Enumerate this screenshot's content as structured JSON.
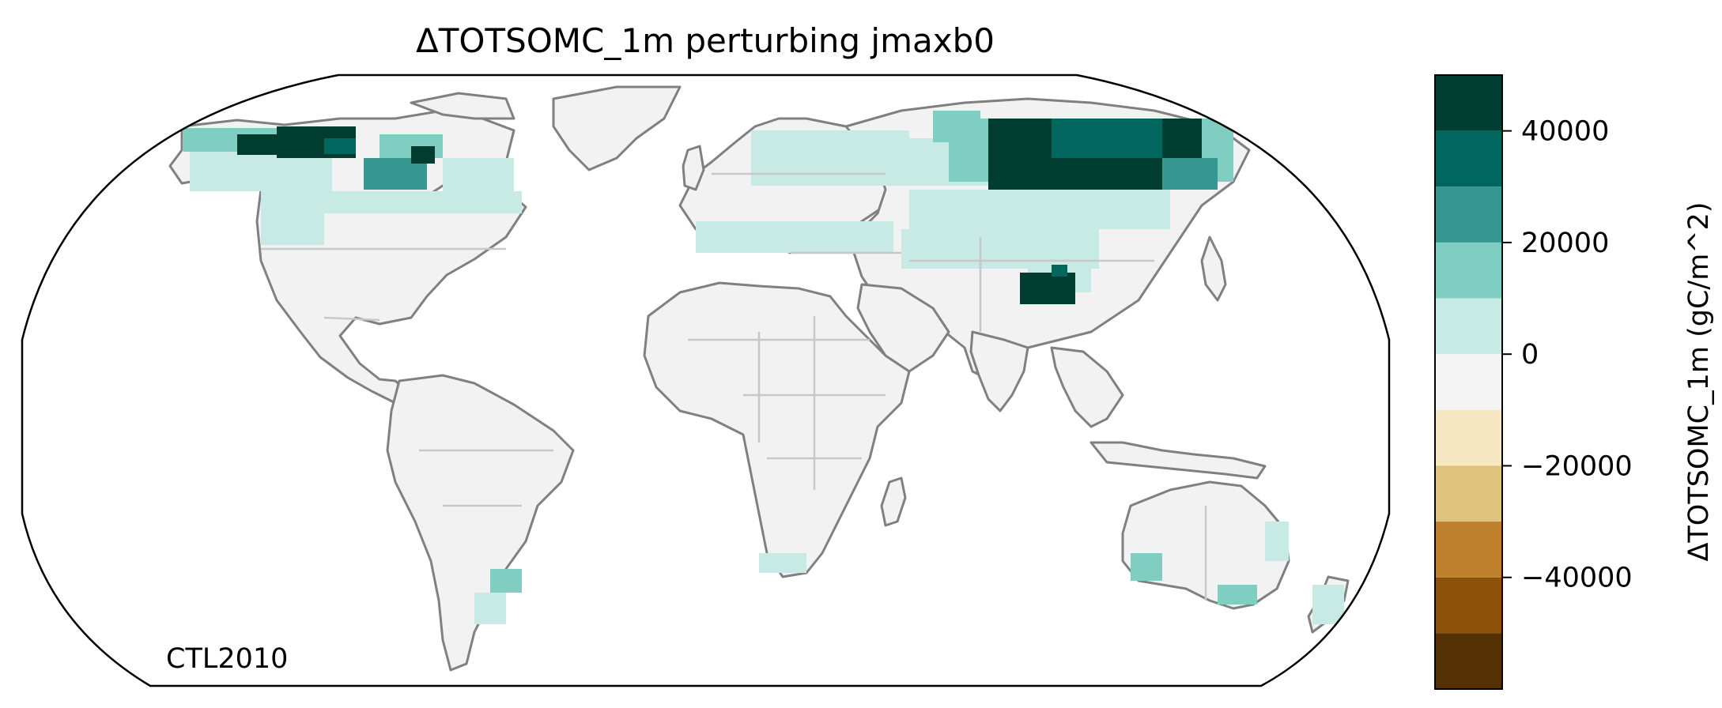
{
  "map": {
    "title": "ΔTOTSOMC_1m perturbing jmaxb0",
    "projection": "Robinson",
    "run_label": "CTL2010",
    "land_color": "#f2f2f2",
    "coastline_color": "#808080",
    "border_color": "#c8c8c8",
    "regions_of_increase": [
      "Canadian Arctic / northern Canada",
      "Hudson Bay surroundings",
      "Central and eastern Siberia",
      "Tibetan Plateau",
      "Northern Europe and western Russia",
      "Southern Australia coast",
      "New Zealand",
      "Southern South America"
    ]
  },
  "colorbar": {
    "label": "ΔTOTSOMC_1m (gC/m^2)",
    "vmin": -50000,
    "vmax": 50000,
    "ticks": [
      {
        "value": 40000,
        "label": "40000"
      },
      {
        "value": 20000,
        "label": "20000"
      },
      {
        "value": 0,
        "label": "0"
      },
      {
        "value": -20000,
        "label": "−20000"
      },
      {
        "value": -40000,
        "label": "−40000"
      }
    ],
    "bins": [
      {
        "lo": 40000,
        "hi": 50000,
        "color": "#003c30"
      },
      {
        "lo": 30000,
        "hi": 40000,
        "color": "#01665e"
      },
      {
        "lo": 20000,
        "hi": 30000,
        "color": "#35978f"
      },
      {
        "lo": 10000,
        "hi": 20000,
        "color": "#80cdc1"
      },
      {
        "lo": 0,
        "hi": 10000,
        "color": "#c7eae5"
      },
      {
        "lo": -10000,
        "hi": 0,
        "color": "#f5f5f5"
      },
      {
        "lo": -20000,
        "hi": -10000,
        "color": "#f6e8c3"
      },
      {
        "lo": -30000,
        "hi": -20000,
        "color": "#dfc27d"
      },
      {
        "lo": -40000,
        "hi": -30000,
        "color": "#bf812d"
      },
      {
        "lo": -50000,
        "hi": -40000,
        "color": "#8c510a"
      },
      {
        "lo": -60000,
        "hi": -50000,
        "color": "#543005"
      }
    ]
  }
}
